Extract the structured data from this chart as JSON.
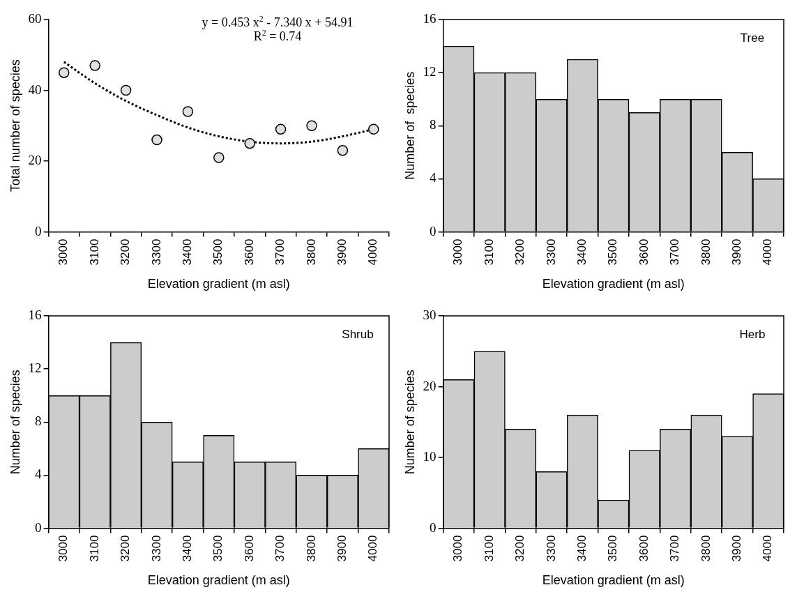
{
  "chart_data": [
    {
      "type": "scatter",
      "categories": [
        "3000",
        "3100",
        "3200",
        "3300",
        "3400",
        "3500",
        "3600",
        "3700",
        "3800",
        "3900",
        "4000"
      ],
      "xlabel": "Elevation gradient (m asl)",
      "ylabel": "Total number of species",
      "ylim": [
        0,
        60
      ],
      "yticks": [
        0,
        20,
        40,
        60
      ],
      "annotations": [
        "y = 0.453 x$^{2}$ - 7.340 x + 54.91",
        "R$^{2}$ = 0.74"
      ],
      "series": [
        {
          "type": "scatter",
          "color": "#e0e0e0",
          "marker": "circle",
          "values": [
            45,
            47,
            40,
            26,
            34,
            21,
            25,
            29,
            30,
            23,
            29
          ]
        },
        {
          "type": "line",
          "color": "#000000",
          "line_style": "dotted",
          "values": [
            48,
            42,
            37,
            33,
            29.5,
            27,
            25.5,
            25,
            25.5,
            27,
            29
          ]
        }
      ]
    },
    {
      "type": "bar",
      "categories": [
        "3000",
        "3100",
        "3200",
        "3300",
        "3400",
        "3500",
        "3600",
        "3700",
        "3800",
        "3900",
        "4000"
      ],
      "xlabel": "Elevation gradient (m asl)",
      "ylabel": "Number of  species",
      "ylim": [
        0,
        16
      ],
      "yticks": [
        0,
        4,
        8,
        12,
        16
      ],
      "annotations": [
        "Tree"
      ],
      "color": "#cccccc",
      "values": [
        14,
        12,
        12,
        10,
        13,
        10,
        9,
        10,
        10,
        6,
        4
      ]
    },
    {
      "type": "bar",
      "categories": [
        "3000",
        "3100",
        "3200",
        "3300",
        "3400",
        "3500",
        "3600",
        "3700",
        "3800",
        "3900",
        "4000"
      ],
      "xlabel": "Elevation gradient (m asl)",
      "ylabel": "Number of species",
      "ylim": [
        0,
        16
      ],
      "yticks": [
        0,
        4,
        8,
        12,
        16
      ],
      "annotations": [
        "Shrub"
      ],
      "color": "#cccccc",
      "values": [
        10,
        10,
        14,
        8,
        5,
        7,
        5,
        5,
        4,
        4,
        6
      ]
    },
    {
      "type": "bar",
      "categories": [
        "3000",
        "3100",
        "3200",
        "3300",
        "3400",
        "3500",
        "3600",
        "3700",
        "3800",
        "3900",
        "4000"
      ],
      "xlabel": "Elevation gradient (m asl)",
      "ylabel": "Number of species",
      "ylim": [
        0,
        30
      ],
      "yticks": [
        0,
        10,
        20,
        30
      ],
      "annotations": [
        "Herb"
      ],
      "color": "#cccccc",
      "values": [
        21,
        25,
        14,
        8,
        16,
        4,
        11,
        14,
        16,
        13,
        19
      ]
    }
  ]
}
